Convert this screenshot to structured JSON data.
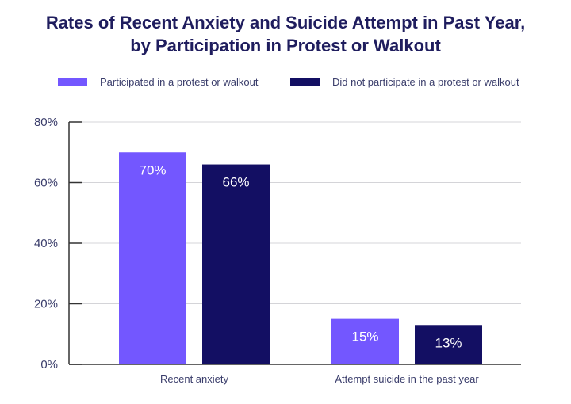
{
  "chart_data": {
    "type": "bar",
    "title_lines": [
      "Rates of Recent Anxiety and Suicide Attempt in Past Year,",
      "by Participation in Protest or Walkout"
    ],
    "categories": [
      "Recent anxiety",
      "Attempt suicide in the past year"
    ],
    "series": [
      {
        "name": "Participated in a protest or walkout",
        "values": [
          70,
          15
        ],
        "color": "#7357ff"
      },
      {
        "name": "Did not participate in a protest or walkout",
        "values": [
          66,
          13
        ],
        "color": "#130f63"
      }
    ],
    "data_labels": [
      [
        "70%",
        "15%"
      ],
      [
        "66%",
        "13%"
      ]
    ],
    "ylim": [
      0,
      80
    ],
    "yticks": [
      0,
      20,
      40,
      60,
      80
    ],
    "ytick_labels": [
      "0%",
      "20%",
      "40%",
      "60%",
      "80%"
    ],
    "grid": true,
    "legend_placement": "top"
  }
}
